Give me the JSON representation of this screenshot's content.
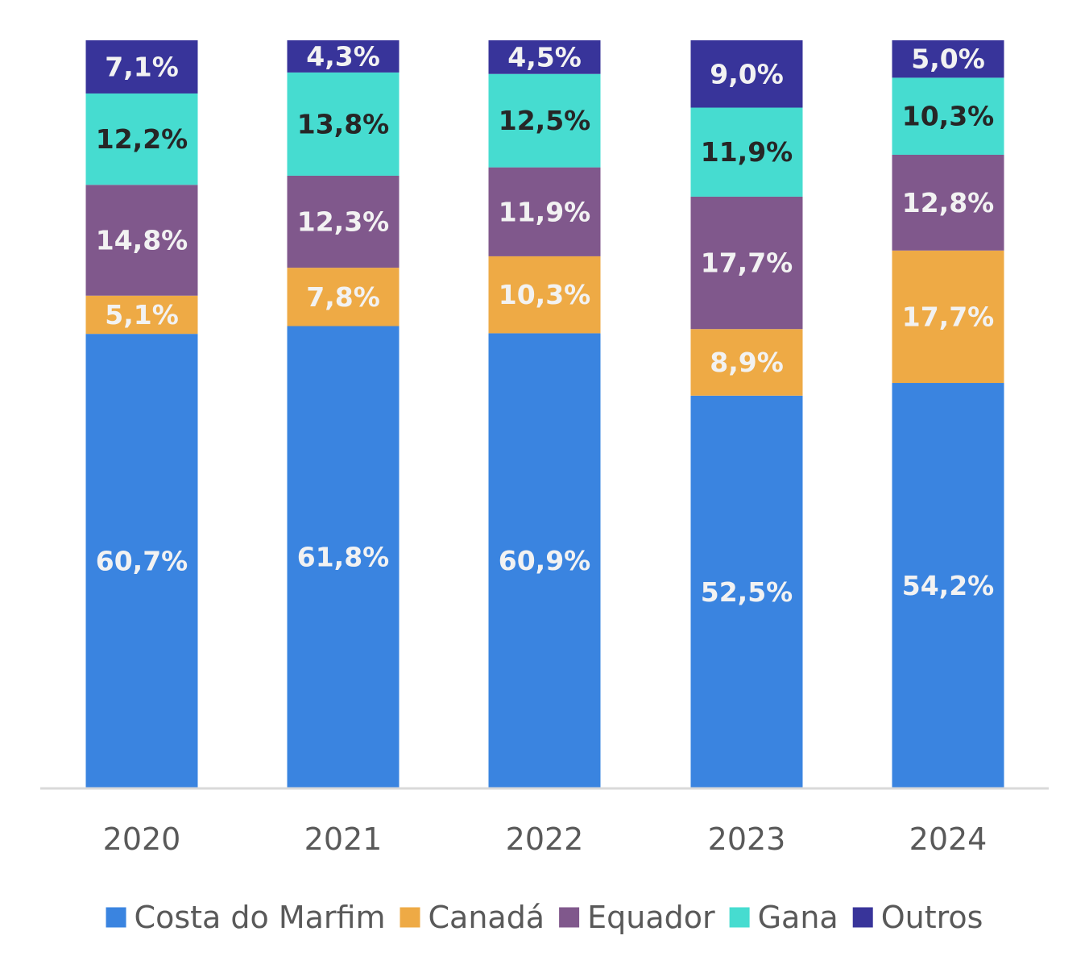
{
  "chart_data": {
    "type": "bar",
    "stacked": true,
    "categories": [
      "2020",
      "2021",
      "2022",
      "2023",
      "2024"
    ],
    "series": [
      {
        "name": "Costa do Marfim",
        "color": "#3A84E0",
        "label_color": "#F2F2F2",
        "values": [
          60.7,
          61.8,
          60.9,
          52.5,
          54.2
        ],
        "labels": [
          "60,7%",
          "61,8%",
          "60,9%",
          "52,5%",
          "54,2%"
        ]
      },
      {
        "name": "Canadá",
        "color": "#EEAA45",
        "label_color": "#F2F2F2",
        "values": [
          5.1,
          7.8,
          10.3,
          8.9,
          17.7
        ],
        "labels": [
          "5,1%",
          "7,8%",
          "10,3%",
          "8,9%",
          "17,7%"
        ]
      },
      {
        "name": "Equador",
        "color": "#80588C",
        "label_color": "#F2F2F2",
        "values": [
          14.8,
          12.3,
          11.9,
          17.7,
          12.8
        ],
        "labels": [
          "14,8%",
          "12,3%",
          "11,9%",
          "17,7%",
          "12,8%"
        ]
      },
      {
        "name": "Gana",
        "color": "#46DCD0",
        "label_color": "#262626",
        "values": [
          12.2,
          13.8,
          12.5,
          11.9,
          10.3
        ],
        "labels": [
          "12,2%",
          "13,8%",
          "12,5%",
          "11,9%",
          "10,3%"
        ]
      },
      {
        "name": "Outros",
        "color": "#38349A",
        "label_color": "#F2F2F2",
        "values": [
          7.1,
          4.3,
          4.5,
          9.0,
          5.0
        ],
        "labels": [
          "7,1%",
          "4,3%",
          "4,5%",
          "9,0%",
          "5,0%"
        ]
      }
    ],
    "ylim": [
      0,
      100
    ],
    "grid": false,
    "legend_position": "bottom",
    "axis_color": "#D9D9D9"
  }
}
